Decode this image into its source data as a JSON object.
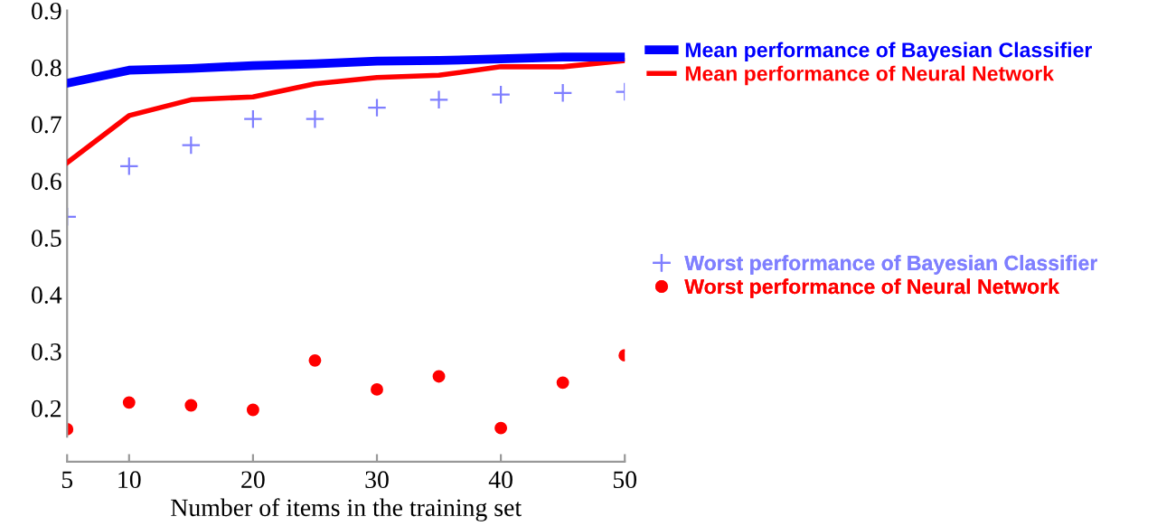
{
  "chart_data": {
    "type": "line",
    "xlabel": "Number of items in the training set",
    "x": [
      5,
      10,
      15,
      20,
      25,
      30,
      35,
      40,
      45,
      50
    ],
    "xlim": [
      5,
      50
    ],
    "xticks": [
      5,
      10,
      20,
      30,
      40,
      50
    ],
    "ylim": [
      0.15,
      0.9
    ],
    "yticks": [
      0.2,
      0.3,
      0.4,
      0.5,
      0.6,
      0.7,
      0.8,
      0.9
    ],
    "grid": false,
    "legend": "right",
    "series": [
      {
        "name": "Mean performance of Bayesian Classifier",
        "color": "#0000ff",
        "values": [
          0.772,
          0.795,
          0.798,
          0.803,
          0.806,
          0.811,
          0.812,
          0.815,
          0.818,
          0.818
        ]
      },
      {
        "name": "Mean performance of Neural Network",
        "color": "#ff0000",
        "values": [
          0.632,
          0.715,
          0.743,
          0.748,
          0.771,
          0.782,
          0.786,
          0.801,
          0.801,
          0.812
        ]
      },
      {
        "name": "Worst performance of Bayesian Classifier",
        "type": "scatter",
        "marker": "cross",
        "color": "#7f7fff",
        "values": [
          0.537,
          0.626,
          0.663,
          0.709,
          0.709,
          0.729,
          0.743,
          0.752,
          0.755,
          0.757
        ]
      },
      {
        "name": "Worst performance of Neural Network",
        "type": "scatter",
        "marker": "circle",
        "color": "#ff0000",
        "values": [
          0.163,
          0.21,
          0.205,
          0.197,
          0.284,
          0.233,
          0.256,
          0.165,
          0.245,
          0.293
        ]
      }
    ]
  }
}
